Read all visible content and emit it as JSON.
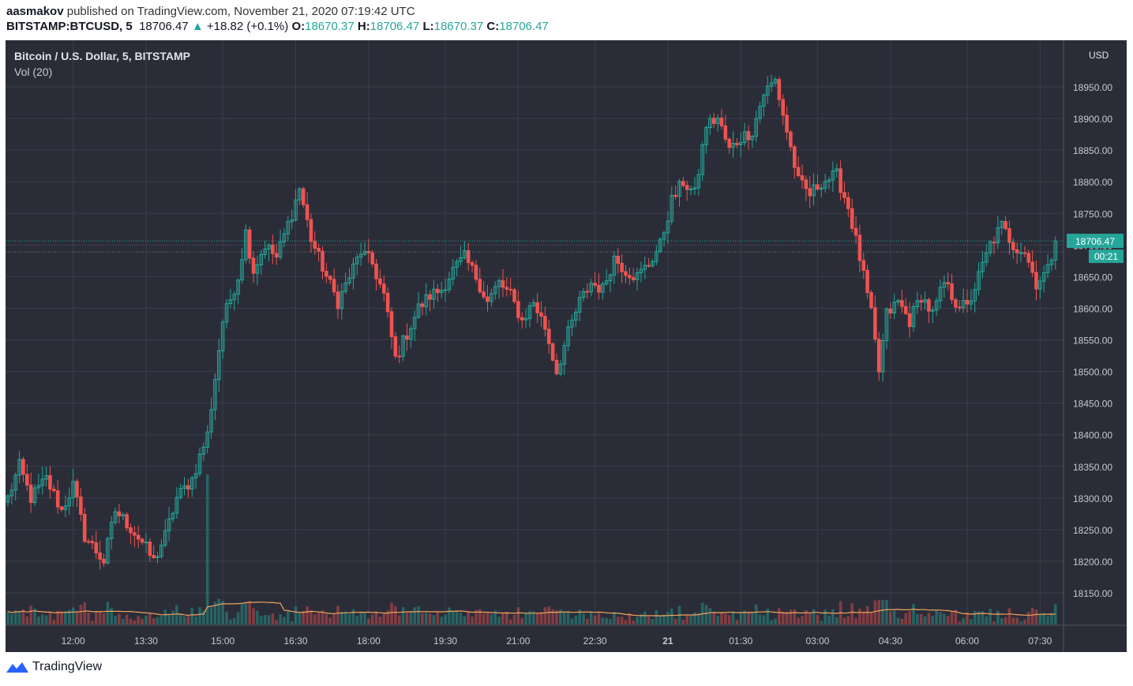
{
  "header": {
    "author": "aasmakov",
    "published": "published on TradingView.com, November 21, 2020 07:19:42 UTC",
    "symbol": "BITSTAMP:BTCUSD, 5",
    "last": "18706.47",
    "change": "+18.82 (+0.1%)",
    "o_label": "O:",
    "o": "18670.37",
    "h_label": "H:",
    "h": "18706.47",
    "l_label": "L:",
    "l": "18670.37",
    "c_label": "C:",
    "c": "18706.47"
  },
  "legend": {
    "title": "Bitcoin / U.S. Dollar, 5, BITSTAMP",
    "volume": "Vol (20)"
  },
  "price_axis": {
    "currency": "USD",
    "last_price_tag": "18706.47",
    "countdown_tag": "00:21"
  },
  "footer": {
    "brand": "TradingView"
  },
  "colors": {
    "up": "#26a69a",
    "down": "#ef5350",
    "background": "#2a2d38",
    "grid": "#3a3e4a",
    "ma": "#f5a35c"
  },
  "chart_data": {
    "type": "candlestick",
    "interval": "5",
    "y_ticks": [
      18150,
      18200,
      18250,
      18300,
      18350,
      18400,
      18450,
      18500,
      18550,
      18600,
      18650,
      18700,
      18750,
      18800,
      18850,
      18900,
      18950
    ],
    "y_range": [
      18118,
      19008
    ],
    "x_ticks": [
      "12:00",
      "13:30",
      "15:00",
      "16:30",
      "18:00",
      "19:30",
      "21:00",
      "22:30",
      "21",
      "01:30",
      "03:00",
      "04:30",
      "06:00",
      "07:30"
    ],
    "anchors": [
      [
        0,
        18300
      ],
      [
        3,
        18350
      ],
      [
        6,
        18300
      ],
      [
        10,
        18330
      ],
      [
        14,
        18280
      ],
      [
        17,
        18320
      ],
      [
        20,
        18240
      ],
      [
        25,
        18200
      ],
      [
        28,
        18280
      ],
      [
        31,
        18260
      ],
      [
        35,
        18230
      ],
      [
        38,
        18200
      ],
      [
        41,
        18240
      ],
      [
        44,
        18300
      ],
      [
        48,
        18330
      ],
      [
        52,
        18400
      ],
      [
        56,
        18580
      ],
      [
        60,
        18650
      ],
      [
        62,
        18720
      ],
      [
        64,
        18660
      ],
      [
        67,
        18700
      ],
      [
        70,
        18680
      ],
      [
        74,
        18750
      ],
      [
        76,
        18790
      ],
      [
        79,
        18710
      ],
      [
        83,
        18650
      ],
      [
        86,
        18610
      ],
      [
        89,
        18650
      ],
      [
        92,
        18690
      ],
      [
        95,
        18670
      ],
      [
        98,
        18620
      ],
      [
        101,
        18520
      ],
      [
        104,
        18560
      ],
      [
        107,
        18600
      ],
      [
        110,
        18620
      ],
      [
        113,
        18630
      ],
      [
        116,
        18660
      ],
      [
        119,
        18680
      ],
      [
        122,
        18650
      ],
      [
        125,
        18610
      ],
      [
        128,
        18640
      ],
      [
        131,
        18620
      ],
      [
        134,
        18580
      ],
      [
        137,
        18610
      ],
      [
        140,
        18570
      ],
      [
        143,
        18500
      ],
      [
        146,
        18560
      ],
      [
        149,
        18610
      ],
      [
        152,
        18640
      ],
      [
        155,
        18630
      ],
      [
        158,
        18680
      ],
      [
        161,
        18660
      ],
      [
        164,
        18650
      ],
      [
        167,
        18670
      ],
      [
        170,
        18700
      ],
      [
        173,
        18770
      ],
      [
        176,
        18800
      ],
      [
        179,
        18780
      ],
      [
        182,
        18890
      ],
      [
        185,
        18900
      ],
      [
        188,
        18850
      ],
      [
        191,
        18870
      ],
      [
        194,
        18880
      ],
      [
        197,
        18940
      ],
      [
        200,
        18960
      ],
      [
        203,
        18880
      ],
      [
        206,
        18800
      ],
      [
        209,
        18780
      ],
      [
        212,
        18800
      ],
      [
        216,
        18810
      ],
      [
        219,
        18760
      ],
      [
        222,
        18680
      ],
      [
        225,
        18590
      ],
      [
        227,
        18500
      ],
      [
        229,
        18590
      ],
      [
        232,
        18610
      ],
      [
        235,
        18580
      ],
      [
        238,
        18620
      ],
      [
        241,
        18590
      ],
      [
        244,
        18640
      ],
      [
        247,
        18610
      ],
      [
        250,
        18600
      ],
      [
        253,
        18650
      ],
      [
        256,
        18700
      ],
      [
        259,
        18730
      ],
      [
        262,
        18700
      ],
      [
        265,
        18690
      ],
      [
        268,
        18640
      ],
      [
        271,
        18660
      ],
      [
        273,
        18706
      ]
    ],
    "volume_ma_period": 20
  }
}
